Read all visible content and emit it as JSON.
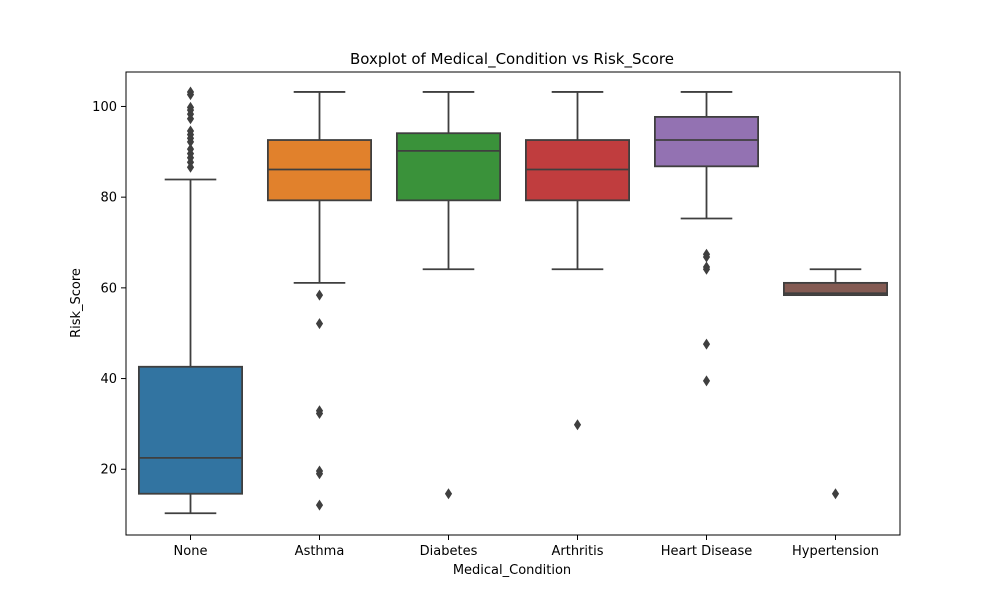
{
  "chart_data": {
    "type": "box",
    "title": "Boxplot of Medical_Condition vs Risk_Score",
    "xlabel": "Medical_Condition",
    "ylabel": "Risk_Score",
    "ylim": [
      5.5,
      107.6
    ],
    "yticks": [
      20,
      40,
      60,
      80,
      100
    ],
    "categories": [
      "None",
      "Asthma",
      "Diabetes",
      "Arthritis",
      "Heart Disease",
      "Hypertension"
    ],
    "colors": [
      "#3274a1",
      "#e1812c",
      "#3a923a",
      "#c03d3e",
      "#9372b2",
      "#845b53"
    ],
    "boxes": [
      {
        "whislo": 10.3,
        "q1": 14.6,
        "med": 22.5,
        "q3": 42.6,
        "whishi": 83.9,
        "fliers": [
          86.6,
          87.7,
          88.7,
          89.6,
          90.6,
          92.2,
          93.0,
          93.8,
          94.6,
          97.3,
          98.3,
          99.2,
          99.8,
          102.6,
          103.2
        ]
      },
      {
        "whislo": 61.1,
        "q1": 79.3,
        "med": 86.1,
        "q3": 92.6,
        "whishi": 103.2,
        "fliers": [
          58.4,
          52.1,
          32.9,
          32.3,
          19.6,
          19.0,
          12.1
        ]
      },
      {
        "whislo": 64.1,
        "q1": 79.3,
        "med": 90.2,
        "q3": 94.1,
        "whishi": 103.2,
        "fliers": [
          14.6
        ]
      },
      {
        "whislo": 64.1,
        "q1": 79.3,
        "med": 86.1,
        "q3": 92.6,
        "whishi": 103.2,
        "fliers": [
          29.8
        ]
      },
      {
        "whislo": 75.3,
        "q1": 86.8,
        "med": 92.6,
        "q3": 97.7,
        "whishi": 103.2,
        "fliers": [
          67.4,
          66.8,
          64.6,
          64.1,
          47.6,
          39.5
        ]
      },
      {
        "whislo": 58.4,
        "q1": 58.4,
        "med": 58.8,
        "q3": 61.1,
        "whishi": 64.1,
        "fliers": [
          14.6
        ]
      }
    ],
    "grid": false,
    "legend": "none"
  }
}
